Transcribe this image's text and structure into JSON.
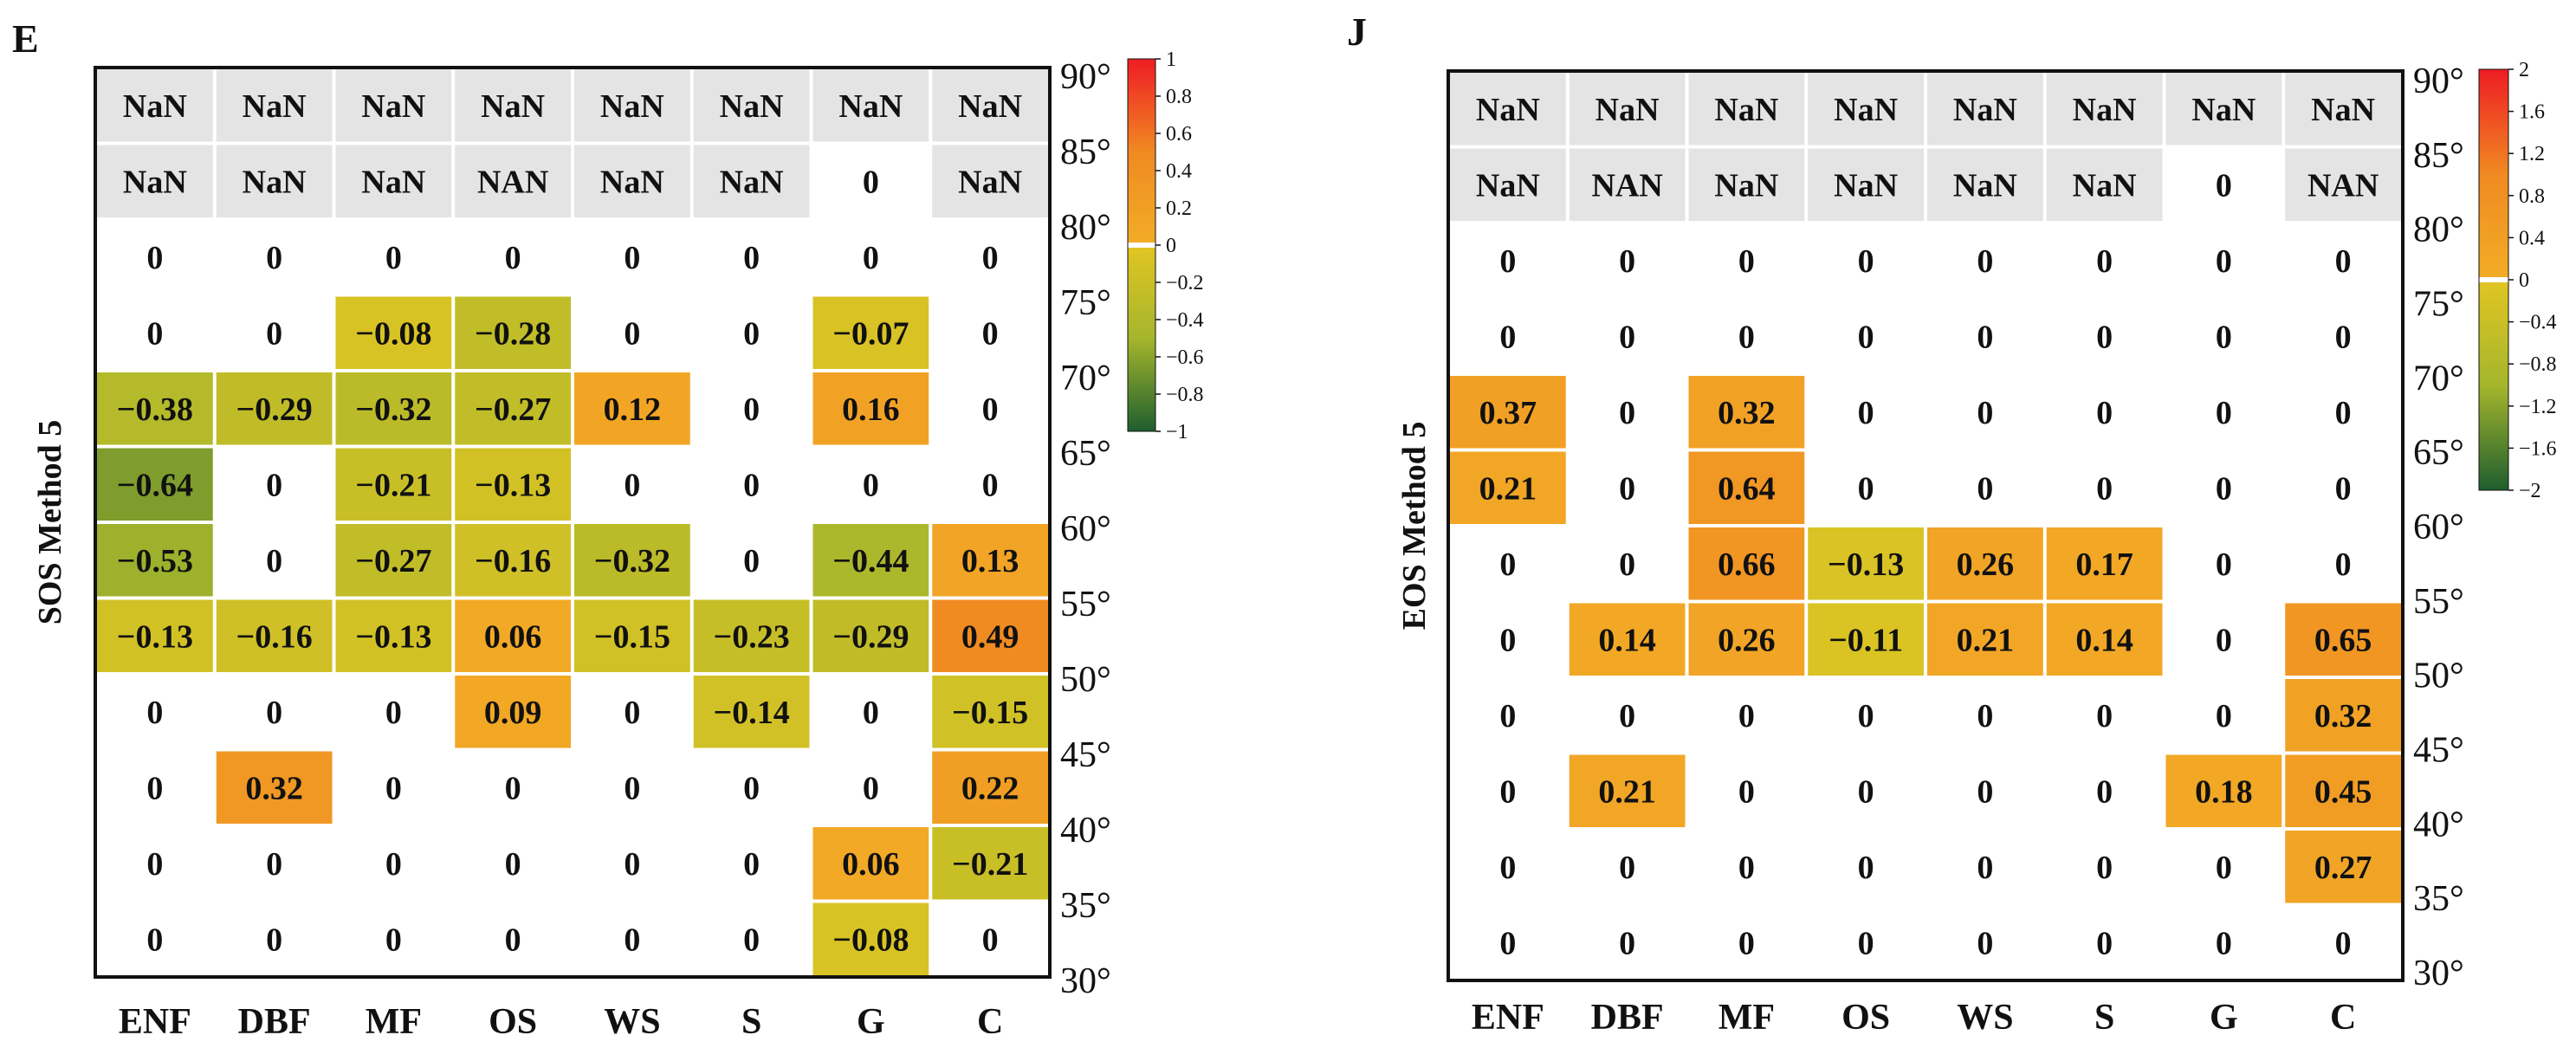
{
  "palette": {
    "nan_cell": "#e4e4e4",
    "zero": "#ffffff",
    "frame": "#111111",
    "neg_end": "#1e5e2e",
    "neg_mid": "#a5b62c",
    "mid_low": "#e2c523",
    "mid_high": "#f2ad26",
    "pos_mid": "#f08a22",
    "pos_end": "#ee1c24"
  },
  "chart_data": [
    {
      "panel_letter": "E",
      "type": "heatmap",
      "ylabel": "SOS  Method 5",
      "categories": [
        "ENF",
        "DBF",
        "MF",
        "OS",
        "WS",
        "S",
        "G",
        "C"
      ],
      "lat_ticks": [
        "90°",
        "85°",
        "80°",
        "75°",
        "70°",
        "65°",
        "60°",
        "55°",
        "50°",
        "45°",
        "40°",
        "35°",
        "30°"
      ],
      "colorbar": {
        "min": -1,
        "max": 1,
        "ticks": [
          "1",
          "0.8",
          "0.6",
          "0.4",
          "0.2",
          "0",
          "−0.2",
          "−0.4",
          "−0.6",
          "−0.8",
          "−1"
        ],
        "tick_values": [
          1,
          0.8,
          0.6,
          0.4,
          0.2,
          0,
          -0.2,
          -0.4,
          -0.6,
          -0.8,
          -1
        ]
      },
      "rows": [
        [
          "NaN",
          "NaN",
          "NaN",
          "NaN",
          "NaN",
          "NaN",
          "NaN",
          "NaN"
        ],
        [
          "NaN",
          "NaN",
          "NaN",
          "NAN",
          "NaN",
          "NaN",
          "0",
          "NaN"
        ],
        [
          "0",
          "0",
          "0",
          "0",
          "0",
          "0",
          "0",
          "0"
        ],
        [
          "0",
          "0",
          "−0.08",
          "−0.28",
          "0",
          "0",
          "−0.07",
          "0"
        ],
        [
          "−0.38",
          "−0.29",
          "−0.32",
          "−0.27",
          "0.12",
          "0",
          "0.16",
          "0"
        ],
        [
          "−0.64",
          "0",
          "−0.21",
          "−0.13",
          "0",
          "0",
          "0",
          "0"
        ],
        [
          "−0.53",
          "0",
          "−0.27",
          "−0.16",
          "−0.32",
          "0",
          "−0.44",
          "0.13"
        ],
        [
          "−0.13",
          "−0.16",
          "−0.13",
          "0.06",
          "−0.15",
          "−0.23",
          "−0.29",
          "0.49"
        ],
        [
          "0",
          "0",
          "0",
          "0.09",
          "0",
          "−0.14",
          "0",
          "−0.15"
        ],
        [
          "0",
          "0.32",
          "0",
          "0",
          "0",
          "0",
          "0",
          "0.22"
        ],
        [
          "0",
          "0",
          "0",
          "0",
          "0",
          "0",
          "0.06",
          "−0.21"
        ],
        [
          "0",
          "0",
          "0",
          "0",
          "0",
          "0",
          "−0.08",
          "0"
        ]
      ]
    },
    {
      "panel_letter": "J",
      "type": "heatmap",
      "ylabel": "EOS  Method 5",
      "categories": [
        "ENF",
        "DBF",
        "MF",
        "OS",
        "WS",
        "S",
        "G",
        "C"
      ],
      "lat_ticks": [
        "90°",
        "85°",
        "80°",
        "75°",
        "70°",
        "65°",
        "60°",
        "55°",
        "50°",
        "45°",
        "40°",
        "35°",
        "30°"
      ],
      "colorbar": {
        "min": -2,
        "max": 2,
        "ticks": [
          "2",
          "1.6",
          "1.2",
          "0.8",
          "0.4",
          "0",
          "−0.4",
          "−0.8",
          "−1.2",
          "−1.6",
          "−2"
        ],
        "tick_values": [
          2,
          1.6,
          1.2,
          0.8,
          0.4,
          0,
          -0.4,
          -0.8,
          -1.2,
          -1.6,
          -2
        ]
      },
      "rows": [
        [
          "NaN",
          "NaN",
          "NaN",
          "NaN",
          "NaN",
          "NaN",
          "NaN",
          "NaN"
        ],
        [
          "NaN",
          "NAN",
          "NaN",
          "NaN",
          "NaN",
          "NaN",
          "0",
          "NAN"
        ],
        [
          "0",
          "0",
          "0",
          "0",
          "0",
          "0",
          "0",
          "0"
        ],
        [
          "0",
          "0",
          "0",
          "0",
          "0",
          "0",
          "0",
          "0"
        ],
        [
          "0.37",
          "0",
          "0.32",
          "0",
          "0",
          "0",
          "0",
          "0"
        ],
        [
          "0.21",
          "0",
          "0.64",
          "0",
          "0",
          "0",
          "0",
          "0"
        ],
        [
          "0",
          "0",
          "0.66",
          "−0.13",
          "0.26",
          "0.17",
          "0",
          "0"
        ],
        [
          "0",
          "0.14",
          "0.26",
          "−0.11",
          "0.21",
          "0.14",
          "0",
          "0.65"
        ],
        [
          "0",
          "0",
          "0",
          "0",
          "0",
          "0",
          "0",
          "0.32"
        ],
        [
          "0",
          "0.21",
          "0",
          "0",
          "0",
          "0",
          "0.18",
          "0.45"
        ],
        [
          "0",
          "0",
          "0",
          "0",
          "0",
          "0",
          "0",
          "0.27"
        ],
        [
          "0",
          "0",
          "0",
          "0",
          "0",
          "0",
          "0",
          "0"
        ]
      ]
    }
  ]
}
